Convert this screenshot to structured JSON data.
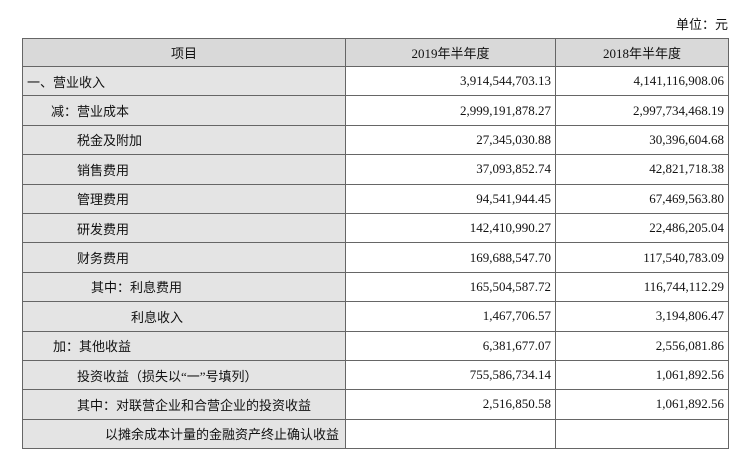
{
  "unit": "单位：元",
  "table": {
    "header": [
      "项目",
      "2019年半年度",
      "2018年半年度"
    ],
    "rows": [
      {
        "label": "一、营业收入",
        "values": [
          "3,914,544,703.13",
          "4,141,116,908.06"
        ]
      },
      {
        "label": "减：营业成本",
        "values": [
          "2,999,191,878.27",
          "2,997,734,468.19"
        ]
      },
      {
        "label": "税金及附加",
        "values": [
          "27,345,030.88",
          "30,396,604.68"
        ]
      },
      {
        "label": "销售费用",
        "values": [
          "37,093,852.74",
          "42,821,718.38"
        ]
      },
      {
        "label": "管理费用",
        "values": [
          "94,541,944.45",
          "67,469,563.80"
        ]
      },
      {
        "label": "研发费用",
        "values": [
          "142,410,990.27",
          "22,486,205.04"
        ]
      },
      {
        "label": "财务费用",
        "values": [
          "169,688,547.70",
          "117,540,783.09"
        ]
      },
      {
        "label": "其中：利息费用",
        "values": [
          "165,504,587.72",
          "116,744,112.29"
        ]
      },
      {
        "label": "利息收入",
        "values": [
          "1,467,706.57",
          "3,194,806.47"
        ]
      },
      {
        "label": "加：其他收益",
        "values": [
          "6,381,677.07",
          "2,556,081.86"
        ]
      },
      {
        "label": "投资收益（损失以“一”号填列）",
        "values": [
          "755,586,734.14",
          "1,061,892.56"
        ]
      },
      {
        "label": "其中：对联营企业和合营企业的投资收益",
        "values": [
          "2,516,850.58",
          "1,061,892.56"
        ]
      },
      {
        "label": "以摊余成本计量的金融资产终止确认收益"
      }
    ]
  }
}
